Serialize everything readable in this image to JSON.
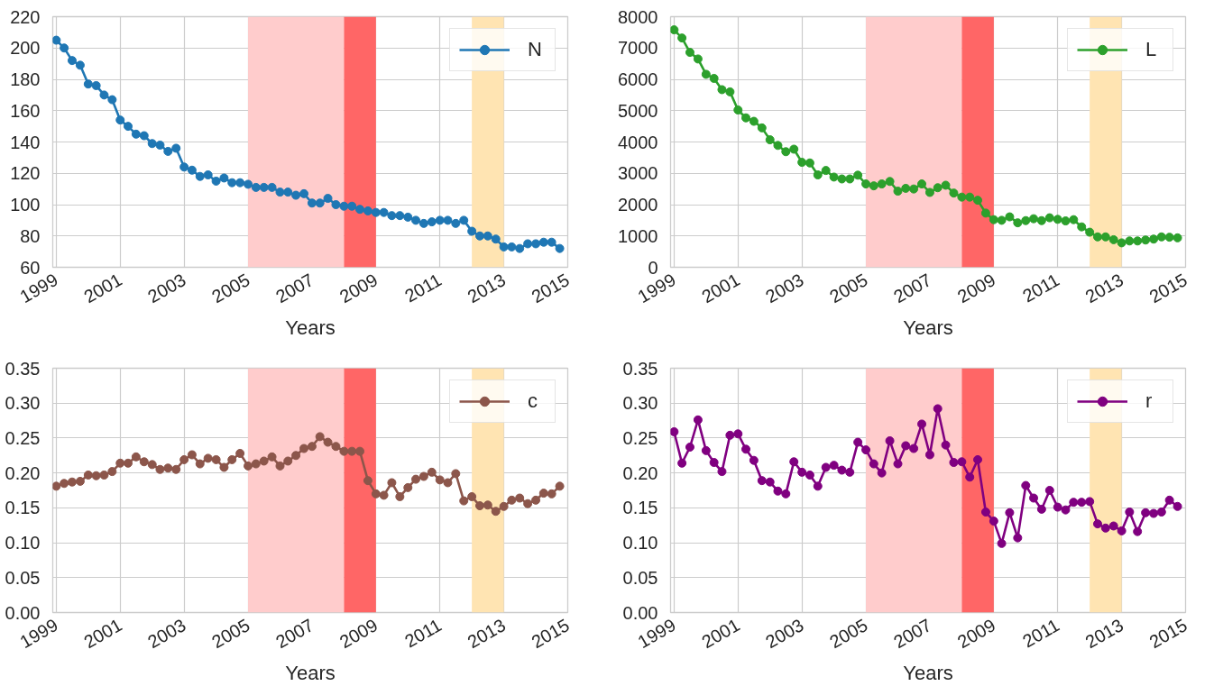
{
  "chart_data": [
    {
      "type": "line",
      "xlabel": "Years",
      "x": [
        "1999-01",
        "1999-04",
        "1999-07",
        "1999-10",
        "2000-01",
        "2000-04",
        "2000-07",
        "2000-10",
        "2001-01",
        "2001-04",
        "2001-07",
        "2001-10",
        "2002-01",
        "2002-04",
        "2002-07",
        "2002-10",
        "2003-01",
        "2003-04",
        "2003-07",
        "2003-10",
        "2004-01",
        "2004-04",
        "2004-07",
        "2004-10",
        "2005-01",
        "2005-04",
        "2005-07",
        "2005-10",
        "2006-01",
        "2006-04",
        "2006-07",
        "2006-10",
        "2007-01",
        "2007-04",
        "2007-07",
        "2007-10",
        "2008-01",
        "2008-04",
        "2008-07",
        "2008-10",
        "2009-01",
        "2009-04",
        "2009-07",
        "2009-10",
        "2010-01",
        "2010-04",
        "2010-07",
        "2010-10",
        "2011-01",
        "2011-04",
        "2011-07",
        "2011-10",
        "2012-01",
        "2012-04",
        "2012-07",
        "2012-10",
        "2013-01",
        "2013-04",
        "2013-07",
        "2013-10",
        "2014-01",
        "2014-04",
        "2014-07",
        "2014-10"
      ],
      "xlim": [
        "1998-11-22",
        "2015"
      ],
      "xticks": [
        "1999",
        "2001",
        "2003",
        "2005",
        "2007",
        "2009",
        "2011",
        "2013",
        "2015"
      ],
      "ylim": [
        60,
        220
      ],
      "yticks": [
        60,
        80,
        100,
        120,
        140,
        160,
        180,
        200,
        220
      ],
      "series": [
        {
          "name": "N",
          "color": "#1f77b4",
          "values": [
            205,
            200,
            192,
            189,
            177,
            176,
            170,
            167,
            154,
            150,
            145,
            144,
            139,
            138,
            134,
            136,
            124,
            122,
            118,
            119,
            115,
            117,
            114,
            114,
            113,
            111,
            111,
            111,
            108,
            108,
            106,
            107,
            101,
            101,
            104,
            100,
            99,
            99,
            97,
            96,
            95,
            95,
            93,
            93,
            92,
            90,
            88,
            89,
            90,
            90,
            88,
            90,
            83,
            80,
            80,
            78,
            73,
            73,
            72,
            75,
            75,
            76,
            76,
            72
          ]
        }
      ],
      "bands": [
        {
          "axis": "x",
          "from": "2005",
          "to": "2008",
          "color": "#ffcccc"
        },
        {
          "axis": "x",
          "from": "2008",
          "to": "2009",
          "color": "#ff6666"
        },
        {
          "axis": "x",
          "from": "2012",
          "to": "2013",
          "color": "#ffe4b2"
        }
      ],
      "grid": true,
      "legend": "top right",
      "marker": "circle",
      "line_style": "solid"
    },
    {
      "type": "line",
      "xlabel": "Years",
      "x": [
        "1999-01",
        "1999-04",
        "1999-07",
        "1999-10",
        "2000-01",
        "2000-04",
        "2000-07",
        "2000-10",
        "2001-01",
        "2001-04",
        "2001-07",
        "2001-10",
        "2002-01",
        "2002-04",
        "2002-07",
        "2002-10",
        "2003-01",
        "2003-04",
        "2003-07",
        "2003-10",
        "2004-01",
        "2004-04",
        "2004-07",
        "2004-10",
        "2005-01",
        "2005-04",
        "2005-07",
        "2005-10",
        "2006-01",
        "2006-04",
        "2006-07",
        "2006-10",
        "2007-01",
        "2007-04",
        "2007-07",
        "2007-10",
        "2008-01",
        "2008-04",
        "2008-07",
        "2008-10",
        "2009-01",
        "2009-04",
        "2009-07",
        "2009-10",
        "2010-01",
        "2010-04",
        "2010-07",
        "2010-10",
        "2011-01",
        "2011-04",
        "2011-07",
        "2011-10",
        "2012-01",
        "2012-04",
        "2012-07",
        "2012-10",
        "2013-01",
        "2013-04",
        "2013-07",
        "2013-10",
        "2014-01",
        "2014-04",
        "2014-07",
        "2014-10"
      ],
      "xlim": [
        "1998-11-22",
        "2015"
      ],
      "xticks": [
        "1999",
        "2001",
        "2003",
        "2005",
        "2007",
        "2009",
        "2011",
        "2013",
        "2015"
      ],
      "ylim": [
        0,
        8000
      ],
      "yticks": [
        0,
        1000,
        2000,
        3000,
        4000,
        5000,
        6000,
        7000,
        8000
      ],
      "series": [
        {
          "name": "L",
          "color": "#2ca02c",
          "values": [
            7580,
            7320,
            6860,
            6650,
            6160,
            6030,
            5670,
            5600,
            5020,
            4770,
            4660,
            4450,
            4070,
            3890,
            3690,
            3770,
            3350,
            3330,
            2950,
            3090,
            2880,
            2820,
            2820,
            2940,
            2660,
            2600,
            2660,
            2740,
            2430,
            2520,
            2500,
            2660,
            2390,
            2540,
            2620,
            2370,
            2240,
            2240,
            2140,
            1730,
            1520,
            1500,
            1610,
            1420,
            1490,
            1550,
            1490,
            1580,
            1530,
            1480,
            1520,
            1290,
            1120,
            970,
            970,
            880,
            780,
            840,
            840,
            870,
            900,
            970,
            960,
            940
          ]
        }
      ],
      "bands": [
        {
          "axis": "x",
          "from": "2005",
          "to": "2008",
          "color": "#ffcccc"
        },
        {
          "axis": "x",
          "from": "2008",
          "to": "2009",
          "color": "#ff6666"
        },
        {
          "axis": "x",
          "from": "2012",
          "to": "2013",
          "color": "#ffe4b2"
        }
      ],
      "grid": true,
      "legend": "top right",
      "marker": "circle",
      "line_style": "solid"
    },
    {
      "type": "line",
      "xlabel": "Years",
      "x": [
        "1999-01",
        "1999-04",
        "1999-07",
        "1999-10",
        "2000-01",
        "2000-04",
        "2000-07",
        "2000-10",
        "2001-01",
        "2001-04",
        "2001-07",
        "2001-10",
        "2002-01",
        "2002-04",
        "2002-07",
        "2002-10",
        "2003-01",
        "2003-04",
        "2003-07",
        "2003-10",
        "2004-01",
        "2004-04",
        "2004-07",
        "2004-10",
        "2005-01",
        "2005-04",
        "2005-07",
        "2005-10",
        "2006-01",
        "2006-04",
        "2006-07",
        "2006-10",
        "2007-01",
        "2007-04",
        "2007-07",
        "2007-10",
        "2008-01",
        "2008-04",
        "2008-07",
        "2008-10",
        "2009-01",
        "2009-04",
        "2009-07",
        "2009-10",
        "2010-01",
        "2010-04",
        "2010-07",
        "2010-10",
        "2011-01",
        "2011-04",
        "2011-07",
        "2011-10",
        "2012-01",
        "2012-04",
        "2012-07",
        "2012-10",
        "2013-01",
        "2013-04",
        "2013-07",
        "2013-10",
        "2014-01",
        "2014-04",
        "2014-07",
        "2014-10"
      ],
      "xlim": [
        "1998-11-22",
        "2015"
      ],
      "xticks": [
        "1999",
        "2001",
        "2003",
        "2005",
        "2007",
        "2009",
        "2011",
        "2013",
        "2015"
      ],
      "ylim": [
        0,
        0.35
      ],
      "yticks": [
        {
          "value": 0,
          "label": "0.00"
        },
        {
          "value": 0.05,
          "label": "0.05"
        },
        {
          "value": 0.1,
          "label": "0.10"
        },
        {
          "value": 0.15,
          "label": "0.15"
        },
        {
          "value": 0.2,
          "label": "0.20"
        },
        {
          "value": 0.25,
          "label": "0.25"
        },
        {
          "value": 0.3,
          "label": "0.30"
        },
        0.35
      ],
      "series": [
        {
          "name": "c",
          "color": "#8c564b",
          "values": [
            0.181,
            0.185,
            0.187,
            0.188,
            0.197,
            0.196,
            0.197,
            0.202,
            0.214,
            0.214,
            0.223,
            0.216,
            0.212,
            0.205,
            0.207,
            0.205,
            0.219,
            0.226,
            0.213,
            0.221,
            0.219,
            0.208,
            0.219,
            0.228,
            0.21,
            0.213,
            0.217,
            0.223,
            0.21,
            0.217,
            0.225,
            0.235,
            0.238,
            0.252,
            0.244,
            0.238,
            0.231,
            0.231,
            0.231,
            0.189,
            0.17,
            0.168,
            0.186,
            0.166,
            0.179,
            0.191,
            0.195,
            0.201,
            0.19,
            0.186,
            0.199,
            0.16,
            0.166,
            0.153,
            0.154,
            0.145,
            0.152,
            0.161,
            0.164,
            0.156,
            0.161,
            0.171,
            0.17,
            0.181
          ]
        }
      ],
      "bands": [
        {
          "axis": "x",
          "from": "2005",
          "to": "2008",
          "color": "#ffcccc"
        },
        {
          "axis": "x",
          "from": "2008",
          "to": "2009",
          "color": "#ff6666"
        },
        {
          "axis": "x",
          "from": "2012",
          "to": "2013",
          "color": "#ffe4b2"
        }
      ],
      "grid": true,
      "legend": "top right",
      "marker": "circle",
      "line_style": "solid"
    },
    {
      "type": "line",
      "xlabel": "Years",
      "x": [
        "1999-01",
        "1999-04",
        "1999-07",
        "1999-10",
        "2000-01",
        "2000-04",
        "2000-07",
        "2000-10",
        "2001-01",
        "2001-04",
        "2001-07",
        "2001-10",
        "2002-01",
        "2002-04",
        "2002-07",
        "2002-10",
        "2003-01",
        "2003-04",
        "2003-07",
        "2003-10",
        "2004-01",
        "2004-04",
        "2004-07",
        "2004-10",
        "2005-01",
        "2005-04",
        "2005-07",
        "2005-10",
        "2006-01",
        "2006-04",
        "2006-07",
        "2006-10",
        "2007-01",
        "2007-04",
        "2007-07",
        "2007-10",
        "2008-01",
        "2008-04",
        "2008-07",
        "2008-10",
        "2009-01",
        "2009-04",
        "2009-07",
        "2009-10",
        "2010-01",
        "2010-04",
        "2010-07",
        "2010-10",
        "2011-01",
        "2011-04",
        "2011-07",
        "2011-10",
        "2012-01",
        "2012-04",
        "2012-07",
        "2012-10",
        "2013-01",
        "2013-04",
        "2013-07",
        "2013-10",
        "2014-01",
        "2014-04",
        "2014-07",
        "2014-10"
      ],
      "xlim": [
        "1998-11-22",
        "2015"
      ],
      "xticks": [
        "1999",
        "2001",
        "2003",
        "2005",
        "2007",
        "2009",
        "2011",
        "2013",
        "2015"
      ],
      "ylim": [
        0,
        0.35
      ],
      "yticks": [
        {
          "value": 0,
          "label": "0.00"
        },
        {
          "value": 0.05,
          "label": "0.05"
        },
        {
          "value": 0.1,
          "label": "0.10"
        },
        {
          "value": 0.15,
          "label": "0.15"
        },
        {
          "value": 0.2,
          "label": "0.20"
        },
        {
          "value": 0.25,
          "label": "0.25"
        },
        {
          "value": 0.3,
          "label": "0.30"
        },
        0.35
      ],
      "series": [
        {
          "name": "r",
          "color": "#800080",
          "values": [
            0.259,
            0.214,
            0.237,
            0.276,
            0.232,
            0.215,
            0.202,
            0.254,
            0.256,
            0.234,
            0.218,
            0.189,
            0.187,
            0.174,
            0.17,
            0.216,
            0.201,
            0.197,
            0.181,
            0.208,
            0.211,
            0.204,
            0.201,
            0.244,
            0.233,
            0.213,
            0.2,
            0.246,
            0.213,
            0.239,
            0.235,
            0.27,
            0.226,
            0.292,
            0.24,
            0.215,
            0.216,
            0.194,
            0.219,
            0.144,
            0.131,
            0.099,
            0.143,
            0.107,
            0.182,
            0.164,
            0.148,
            0.175,
            0.151,
            0.147,
            0.158,
            0.158,
            0.159,
            0.127,
            0.121,
            0.124,
            0.117,
            0.144,
            0.116,
            0.143,
            0.142,
            0.144,
            0.161,
            0.152
          ]
        }
      ],
      "bands": [
        {
          "axis": "x",
          "from": "2005",
          "to": "2008",
          "color": "#ffcccc"
        },
        {
          "axis": "x",
          "from": "2008",
          "to": "2009",
          "color": "#ff6666"
        },
        {
          "axis": "x",
          "from": "2012",
          "to": "2013",
          "color": "#ffe4b2"
        }
      ],
      "grid": true,
      "legend": "top right",
      "marker": "circle",
      "line_style": "solid"
    }
  ]
}
